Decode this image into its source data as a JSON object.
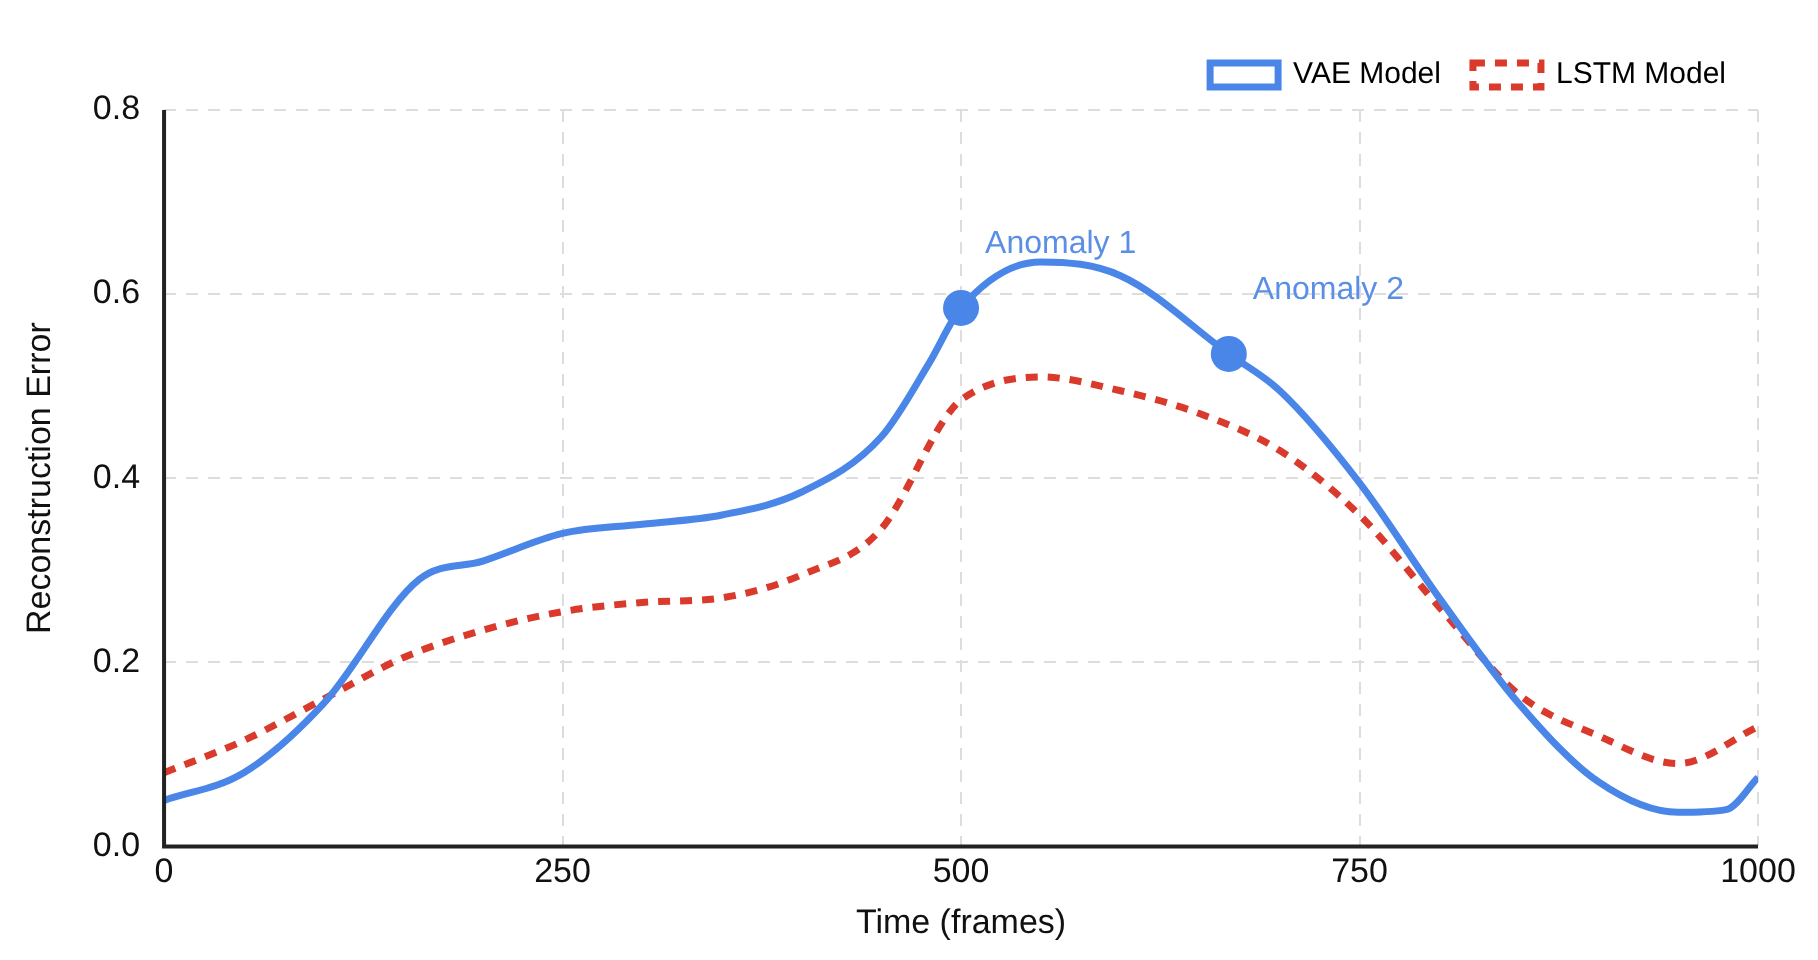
{
  "chart_data": {
    "type": "line",
    "xlabel": "Time (frames)",
    "ylabel": "Reconstruction Error",
    "xlim": [
      0,
      1000
    ],
    "xticks": [
      0,
      250,
      500,
      750,
      1000
    ],
    "ylim": [
      0,
      0.8
    ],
    "yticks": [
      {
        "value": 0,
        "label": "0.0"
      },
      {
        "value": 0.2,
        "label": "0.2"
      },
      {
        "value": 0.4,
        "label": "0.4"
      },
      {
        "value": 0.6,
        "label": "0.6"
      },
      {
        "value": 0.8,
        "label": "0.8"
      }
    ],
    "grid": true,
    "legend": "top right",
    "marker": "none",
    "series": [
      {
        "name": "VAE Model",
        "color": "#4a86e8",
        "line_style": "solid",
        "x": [
          0,
          50,
          100,
          160,
          200,
          250,
          300,
          350,
          400,
          450,
          480,
          500,
          550,
          600,
          668,
          700,
          750,
          800,
          850,
          900,
          950,
          980,
          1000
        ],
        "values": [
          0.05,
          0.08,
          0.155,
          0.29,
          0.31,
          0.34,
          0.35,
          0.36,
          0.385,
          0.445,
          0.525,
          0.585,
          0.635,
          0.62,
          0.535,
          0.495,
          0.395,
          0.27,
          0.155,
          0.07,
          0.037,
          0.04,
          0.075
        ]
      },
      {
        "name": "LSTM Model",
        "color": "#d93a2b",
        "line_style": "dotted",
        "x": [
          0,
          50,
          100,
          150,
          200,
          250,
          300,
          350,
          400,
          450,
          490,
          500,
          550,
          600,
          650,
          700,
          750,
          800,
          850,
          900,
          950,
          1000
        ],
        "values": [
          0.08,
          0.115,
          0.16,
          0.205,
          0.235,
          0.255,
          0.265,
          0.27,
          0.295,
          0.345,
          0.465,
          0.485,
          0.51,
          0.495,
          0.47,
          0.43,
          0.36,
          0.26,
          0.165,
          0.12,
          0.09,
          0.13
        ]
      },
      {
        "type": "scatter",
        "marker": "circle",
        "color": "#4a86e8",
        "x": [
          500,
          668
        ],
        "values": [
          0.585,
          0.535
        ]
      }
    ],
    "annotations": [
      {
        "text": "Anomaly 1",
        "x": 500,
        "y": 0.585
      },
      {
        "text": "Anomaly 2",
        "x": 668,
        "y": 0.535
      }
    ]
  }
}
